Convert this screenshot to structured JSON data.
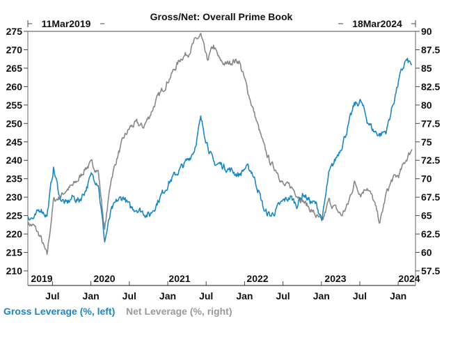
{
  "chart_data": {
    "type": "line",
    "title": "Gross/Net: Overall Prime Book",
    "start_label": "11Mar2019",
    "end_label": "18Mar2024",
    "x_unit": "month index from Mar 2019 (monthly samples)",
    "x": [
      "Mar2019",
      "Apr2019",
      "May2019",
      "Jun2019",
      "Jul2019",
      "Aug2019",
      "Sep2019",
      "Oct2019",
      "Nov2019",
      "Dec2019",
      "Jan2020",
      "Feb2020",
      "Mar2020",
      "Apr2020",
      "May2020",
      "Jun2020",
      "Jul2020",
      "Aug2020",
      "Sep2020",
      "Oct2020",
      "Nov2020",
      "Dec2020",
      "Jan2021",
      "Feb2021",
      "Mar2021",
      "Apr2021",
      "May2021",
      "Jun2021",
      "Jul2021",
      "Aug2021",
      "Sep2021",
      "Oct2021",
      "Nov2021",
      "Dec2021",
      "Jan2022",
      "Feb2022",
      "Mar2022",
      "Apr2022",
      "May2022",
      "Jun2022",
      "Jul2022",
      "Aug2022",
      "Sep2022",
      "Oct2022",
      "Nov2022",
      "Dec2022",
      "Jan2023",
      "Feb2023",
      "Mar2023",
      "Apr2023",
      "May2023",
      "Jun2023",
      "Jul2023",
      "Aug2023",
      "Sep2023",
      "Oct2023",
      "Nov2023",
      "Dec2023",
      "Jan2024",
      "Feb2024",
      "Mar2024"
    ],
    "series": [
      {
        "name": "Gross Leverage (%, left)",
        "axis": "left",
        "color": "#1a87c0",
        "values": [
          225,
          224,
          227,
          225,
          238,
          230,
          228,
          230,
          229,
          232,
          236,
          234,
          218,
          226,
          229,
          230,
          227,
          227,
          226,
          225,
          228,
          231,
          234,
          236,
          238,
          240,
          243,
          251,
          245,
          239,
          239,
          238,
          237,
          236,
          238,
          237,
          232,
          226,
          225,
          227,
          229,
          230,
          228,
          231,
          229,
          228,
          224,
          236,
          240,
          244,
          249,
          255,
          256,
          251,
          248,
          247,
          248,
          255,
          262,
          267,
          266
        ]
      },
      {
        "name": "Net Leverage (%, right)",
        "axis": "right",
        "color": "#888888",
        "values": [
          64,
          63.5,
          62,
          59.5,
          67,
          67.5,
          68.5,
          69,
          70,
          71.5,
          72,
          71,
          63,
          70,
          73,
          75.5,
          77,
          77.5,
          77,
          78.5,
          80.5,
          82,
          83.5,
          85,
          86.5,
          87,
          88.5,
          89.5,
          86,
          88,
          86,
          85.5,
          86,
          86,
          83,
          80,
          77,
          74,
          72,
          71,
          69,
          69,
          68,
          67,
          66,
          65,
          64,
          67,
          66,
          65,
          66.5,
          69.5,
          68,
          69,
          67,
          64,
          68,
          70,
          70.5,
          72.5,
          74
        ]
      }
    ],
    "y_left": {
      "ticks": [
        210,
        215,
        220,
        225,
        230,
        235,
        240,
        245,
        250,
        255,
        260,
        265,
        270,
        275
      ],
      "range": [
        206,
        275
      ]
    },
    "y_right": {
      "ticks": [
        "57.5",
        "60",
        "62.5",
        "65",
        "67.5",
        "70",
        "72.5",
        "75",
        "77.5",
        "80",
        "82.5",
        "85",
        "87.5",
        "90"
      ],
      "range": [
        55.5,
        90
      ]
    },
    "year_labels": [
      "2019",
      "2020",
      "2021",
      "2022",
      "2023",
      "2024"
    ],
    "month_labels": [
      "Jul",
      "Jan",
      "Jul",
      "Jan",
      "Jul",
      "Jan",
      "Jul",
      "Jan",
      "Jul",
      "Jan"
    ],
    "legend": [
      "Gross Leverage (%, left)",
      "Net Leverage (%, right)"
    ],
    "legend_position": "bottom-left",
    "grid": false
  }
}
